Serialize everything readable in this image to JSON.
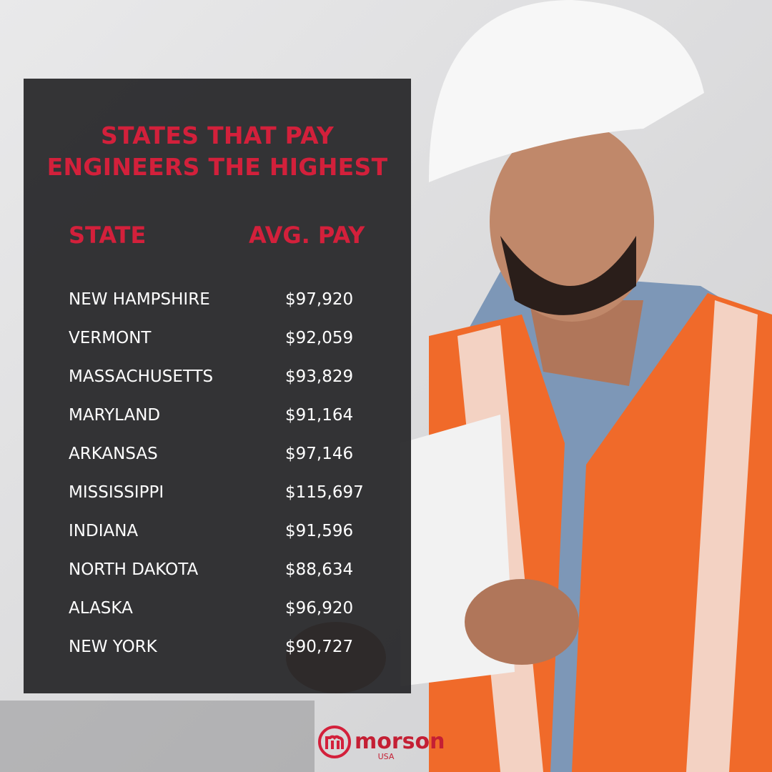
{
  "header": {
    "title": "STATES THAT PAY ENGINEERS THE HIGHEST"
  },
  "table": {
    "columns": [
      "STATE",
      "AVG. PAY"
    ],
    "rows": [
      [
        "NEW HAMPSHIRE",
        "$97,920"
      ],
      [
        "VERMONT",
        "$92,059"
      ],
      [
        "MASSACHUSETTS",
        "$93,829"
      ],
      [
        "MARYLAND",
        "$91,164"
      ],
      [
        "ARKANSAS",
        "$97,146"
      ],
      [
        "MISSISSIPPI",
        "$115,697"
      ],
      [
        "INDIANA",
        "$91,596"
      ],
      [
        "NORTH DAKOTA",
        "$88,634"
      ],
      [
        "ALASKA",
        "$96,920"
      ],
      [
        "NEW YORK",
        "$90,727"
      ]
    ]
  },
  "logo": {
    "brand": "morson",
    "region": "USA"
  }
}
